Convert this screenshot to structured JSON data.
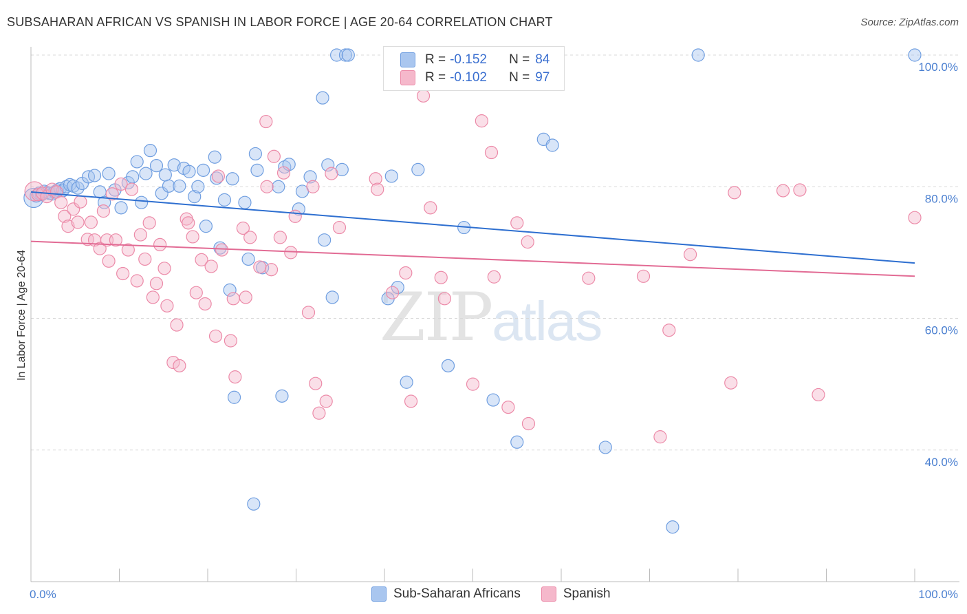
{
  "title": "SUBSAHARAN AFRICAN VS SPANISH IN LABOR FORCE | AGE 20-64 CORRELATION CHART",
  "source": "Source: ZipAtlas.com",
  "watermark": {
    "zip": "ZIP",
    "atlas": "atlas"
  },
  "legend_top": [
    {
      "r_label": "R =",
      "r_value": "-0.152",
      "n_label": "N =",
      "n_value": "84",
      "color": "#a9c6ef"
    },
    {
      "r_label": "R =",
      "r_value": "-0.102",
      "n_label": "N =",
      "n_value": "97",
      "color": "#f5b8cb"
    }
  ],
  "legend_bottom": [
    {
      "label": "Sub-Saharan Africans",
      "color": "#a9c6ef"
    },
    {
      "label": "Spanish",
      "color": "#f5b8cb"
    }
  ],
  "chart_data": {
    "type": "scatter",
    "title": "SUBSAHARAN AFRICAN VS SPANISH IN LABOR FORCE | AGE 20-64 CORRELATION CHART",
    "xlabel": "",
    "ylabel": "In Labor Force | Age 20-64",
    "xlim": [
      0,
      100
    ],
    "ylim": [
      20,
      102
    ],
    "x_tick_labels": [
      "0.0%",
      "100.0%"
    ],
    "y_ticks": [
      40,
      60,
      80,
      100
    ],
    "y_tick_labels": [
      "40.0%",
      "60.0%",
      "80.0%",
      "100.0%"
    ],
    "grid": true,
    "series": [
      {
        "name": "Sub-Saharan Africans",
        "color": "#6f9ee0",
        "fill": "#a9c6ef",
        "trend": {
          "y_at_0": 79.2,
          "y_at_100": 68.4,
          "color": "#2e6fd0"
        },
        "points": [
          [
            0.3,
            78.3
          ],
          [
            0.6,
            78.6
          ],
          [
            0.9,
            79.0
          ],
          [
            1.2,
            78.8
          ],
          [
            1.5,
            79.3
          ],
          [
            1.8,
            79.1
          ],
          [
            2.1,
            79.0
          ],
          [
            2.4,
            78.9
          ],
          [
            2.7,
            79.2
          ],
          [
            3.0,
            79.5
          ],
          [
            3.3,
            79.7
          ],
          [
            3.6,
            79.4
          ],
          [
            4.0,
            80.0
          ],
          [
            4.4,
            80.3
          ],
          [
            4.8,
            80.1
          ],
          [
            5.3,
            79.8
          ],
          [
            5.8,
            80.5
          ],
          [
            6.5,
            81.5
          ],
          [
            7.2,
            81.7
          ],
          [
            7.8,
            79.2
          ],
          [
            8.3,
            77.6
          ],
          [
            8.8,
            82.0
          ],
          [
            9.5,
            79.5
          ],
          [
            10.2,
            76.8
          ],
          [
            11.0,
            80.6
          ],
          [
            11.5,
            81.5
          ],
          [
            12.0,
            83.8
          ],
          [
            12.5,
            77.6
          ],
          [
            13.0,
            82.0
          ],
          [
            13.5,
            85.5
          ],
          [
            14.2,
            83.2
          ],
          [
            14.8,
            79.0
          ],
          [
            15.2,
            81.8
          ],
          [
            15.6,
            80.1
          ],
          [
            16.2,
            83.3
          ],
          [
            16.8,
            80.1
          ],
          [
            17.3,
            82.8
          ],
          [
            17.9,
            82.3
          ],
          [
            18.5,
            78.5
          ],
          [
            18.9,
            80.0
          ],
          [
            19.5,
            82.5
          ],
          [
            19.8,
            74.0
          ],
          [
            20.8,
            84.5
          ],
          [
            21.0,
            81.3
          ],
          [
            21.4,
            70.7
          ],
          [
            21.9,
            78.0
          ],
          [
            22.8,
            81.2
          ],
          [
            22.5,
            64.3
          ],
          [
            23.0,
            48.0
          ],
          [
            24.2,
            77.6
          ],
          [
            24.6,
            69.0
          ],
          [
            25.2,
            31.8
          ],
          [
            25.4,
            85.0
          ],
          [
            25.6,
            82.5
          ],
          [
            26.2,
            67.7
          ],
          [
            28.0,
            80.0
          ],
          [
            28.4,
            48.2
          ],
          [
            28.7,
            83.0
          ],
          [
            29.2,
            83.4
          ],
          [
            30.3,
            76.6
          ],
          [
            30.7,
            79.3
          ],
          [
            31.6,
            81.5
          ],
          [
            33.0,
            93.5
          ],
          [
            33.2,
            71.9
          ],
          [
            33.6,
            83.3
          ],
          [
            34.1,
            63.2
          ],
          [
            34.6,
            100.0
          ],
          [
            35.2,
            82.6
          ],
          [
            35.6,
            100.0
          ],
          [
            35.9,
            100.0
          ],
          [
            40.4,
            63.0
          ],
          [
            40.8,
            81.6
          ],
          [
            41.5,
            64.7
          ],
          [
            42.5,
            50.3
          ],
          [
            43.8,
            82.6
          ],
          [
            47.2,
            52.8
          ],
          [
            49.0,
            73.8
          ],
          [
            52.3,
            47.6
          ],
          [
            55.0,
            41.2
          ],
          [
            58.0,
            87.2
          ],
          [
            59.0,
            86.3
          ],
          [
            65.0,
            40.4
          ],
          [
            72.6,
            28.3
          ],
          [
            75.5,
            100.0
          ],
          [
            100.0,
            100.0
          ]
        ]
      },
      {
        "name": "Spanish",
        "color": "#ec8aa8",
        "fill": "#f5b8cb",
        "trend": {
          "y_at_0": 71.7,
          "y_at_100": 66.4,
          "color": "#e26b94"
        },
        "points": [
          [
            0.4,
            79.3
          ],
          [
            0.8,
            78.8
          ],
          [
            1.3,
            79.0
          ],
          [
            1.8,
            78.5
          ],
          [
            2.4,
            79.6
          ],
          [
            2.9,
            79.2
          ],
          [
            3.4,
            77.6
          ],
          [
            3.8,
            75.5
          ],
          [
            4.2,
            74.0
          ],
          [
            4.8,
            76.6
          ],
          [
            5.3,
            74.6
          ],
          [
            5.6,
            77.7
          ],
          [
            6.4,
            72.0
          ],
          [
            6.8,
            74.6
          ],
          [
            7.2,
            71.9
          ],
          [
            7.8,
            70.6
          ],
          [
            8.2,
            76.3
          ],
          [
            8.6,
            71.9
          ],
          [
            8.8,
            68.7
          ],
          [
            9.2,
            78.9
          ],
          [
            9.6,
            71.9
          ],
          [
            10.2,
            80.4
          ],
          [
            10.4,
            66.8
          ],
          [
            11.0,
            70.4
          ],
          [
            11.4,
            79.6
          ],
          [
            12.0,
            65.7
          ],
          [
            12.4,
            72.7
          ],
          [
            12.9,
            69.0
          ],
          [
            13.4,
            74.5
          ],
          [
            13.8,
            63.2
          ],
          [
            14.2,
            65.3
          ],
          [
            14.6,
            71.2
          ],
          [
            15.1,
            67.6
          ],
          [
            15.4,
            61.9
          ],
          [
            16.1,
            53.3
          ],
          [
            16.5,
            59.0
          ],
          [
            16.8,
            52.8
          ],
          [
            17.6,
            75.1
          ],
          [
            17.8,
            74.5
          ],
          [
            18.3,
            72.4
          ],
          [
            18.7,
            63.9
          ],
          [
            19.3,
            68.9
          ],
          [
            19.7,
            62.2
          ],
          [
            20.4,
            67.9
          ],
          [
            20.9,
            57.3
          ],
          [
            21.2,
            81.6
          ],
          [
            21.6,
            70.4
          ],
          [
            22.6,
            56.6
          ],
          [
            22.9,
            63.0
          ],
          [
            23.1,
            51.1
          ],
          [
            24.0,
            73.7
          ],
          [
            24.3,
            63.2
          ],
          [
            24.8,
            72.3
          ],
          [
            25.9,
            67.8
          ],
          [
            26.6,
            89.9
          ],
          [
            26.7,
            80.0
          ],
          [
            27.2,
            67.4
          ],
          [
            27.5,
            84.6
          ],
          [
            28.2,
            72.3
          ],
          [
            28.6,
            82.1
          ],
          [
            29.4,
            70.0
          ],
          [
            29.9,
            75.5
          ],
          [
            31.4,
            60.9
          ],
          [
            31.9,
            80.0
          ],
          [
            32.2,
            50.1
          ],
          [
            32.6,
            45.6
          ],
          [
            33.4,
            47.4
          ],
          [
            34.0,
            82.0
          ],
          [
            34.9,
            73.8
          ],
          [
            39.0,
            81.2
          ],
          [
            39.2,
            79.6
          ],
          [
            40.9,
            63.9
          ],
          [
            42.4,
            66.9
          ],
          [
            43.0,
            47.4
          ],
          [
            44.4,
            93.8
          ],
          [
            45.2,
            76.8
          ],
          [
            46.4,
            66.2
          ],
          [
            46.8,
            63.0
          ],
          [
            48.0,
            100.0
          ],
          [
            50.0,
            50.0
          ],
          [
            51.0,
            90.0
          ],
          [
            52.1,
            85.2
          ],
          [
            52.4,
            66.3
          ],
          [
            54.0,
            46.5
          ],
          [
            55.0,
            74.5
          ],
          [
            56.2,
            71.6
          ],
          [
            56.3,
            44.0
          ],
          [
            63.1,
            66.1
          ],
          [
            69.3,
            66.4
          ],
          [
            71.2,
            42.0
          ],
          [
            72.2,
            58.2
          ],
          [
            74.6,
            69.7
          ],
          [
            79.2,
            50.2
          ],
          [
            79.6,
            79.1
          ],
          [
            85.1,
            79.4
          ],
          [
            87.0,
            79.5
          ],
          [
            89.1,
            48.4
          ],
          [
            100.0,
            75.3
          ]
        ]
      }
    ]
  }
}
